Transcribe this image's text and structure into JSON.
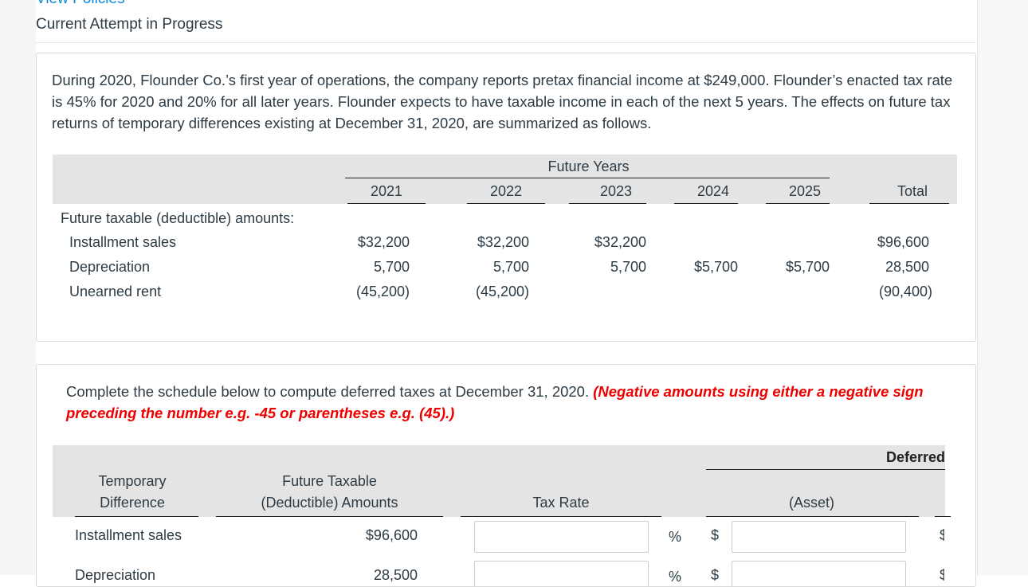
{
  "header": {
    "top_link": "View Policies",
    "title": "Current Attempt in Progress"
  },
  "problem": {
    "text": "During 2020, Flounder Co.’s first year of operations, the company reports pretax financial income at $249,000. Flounder’s enacted tax rate is 45% for 2020 and 20% for all later years. Flounder expects to have taxable income in each of the next 5 years. The effects on future tax returns of temporary differences existing at December 31, 2020, are summarized as follows.",
    "table": {
      "group_header": "Future Years",
      "columns": [
        "2021",
        "2022",
        "2023",
        "2024",
        "2025",
        "Total"
      ],
      "section_label": "Future taxable (deductible) amounts:",
      "rows": [
        {
          "label": "Installment sales",
          "values": [
            "$32,200",
            "$32,200",
            "$32,200",
            "",
            "",
            "$96,600"
          ]
        },
        {
          "label": "Depreciation",
          "values": [
            "5,700",
            "5,700",
            "5,700",
            "$5,700",
            "$5,700",
            "28,500"
          ]
        },
        {
          "label": "Unearned rent",
          "values": [
            "(45,200)",
            "(45,200)",
            "",
            "",
            "",
            "(90,400)"
          ]
        }
      ]
    }
  },
  "schedule": {
    "instruction": "Complete the schedule below to compute deferred taxes at December 31, 2020.",
    "note": "(Negative amounts using either a negative sign preceding the number e.g. -45 or parentheses e.g. (45).)",
    "headers": {
      "temp_diff": [
        "Temporary",
        "Difference"
      ],
      "amounts": [
        "Future Taxable",
        "(Deductible) Amounts"
      ],
      "tax_rate": "Tax Rate",
      "deferred": "Deferred",
      "asset": "(Asset)"
    },
    "percent": "%",
    "dollar": "$",
    "rows": [
      {
        "label": "Installment sales",
        "amount": "$96,600",
        "tax_rate": "",
        "deferred": ""
      },
      {
        "label": "Depreciation",
        "amount": "28,500",
        "tax_rate": "",
        "deferred": ""
      }
    ]
  }
}
